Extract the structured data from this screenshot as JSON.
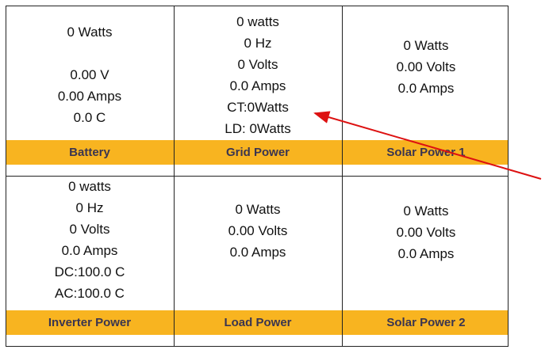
{
  "cells": [
    {
      "lines": [
        "0 Watts",
        "0.00 V",
        "0.00 Amps",
        "0.0 C"
      ],
      "label": "Battery"
    },
    {
      "lines": [
        "0 watts",
        "0 Hz",
        "0 Volts",
        "0.0 Amps",
        "CT:0Watts",
        "LD: 0Watts"
      ],
      "label": "Grid Power"
    },
    {
      "lines": [
        "0 Watts",
        "0.00 Volts",
        "0.0 Amps"
      ],
      "label": "Solar Power 1"
    },
    {
      "lines": [
        "0 watts",
        "0 Hz",
        "0 Volts",
        "0.0 Amps",
        "DC:100.0 C",
        "AC:100.0 C"
      ],
      "label": "Inverter Power"
    },
    {
      "lines": [
        "0 Watts",
        "0.00 Volts",
        "0.0 Amps"
      ],
      "label": "Load Power"
    },
    {
      "lines": [
        "0 Watts",
        "0.00 Volts",
        "0.0 Amps"
      ],
      "label": "Solar Power 2"
    }
  ]
}
